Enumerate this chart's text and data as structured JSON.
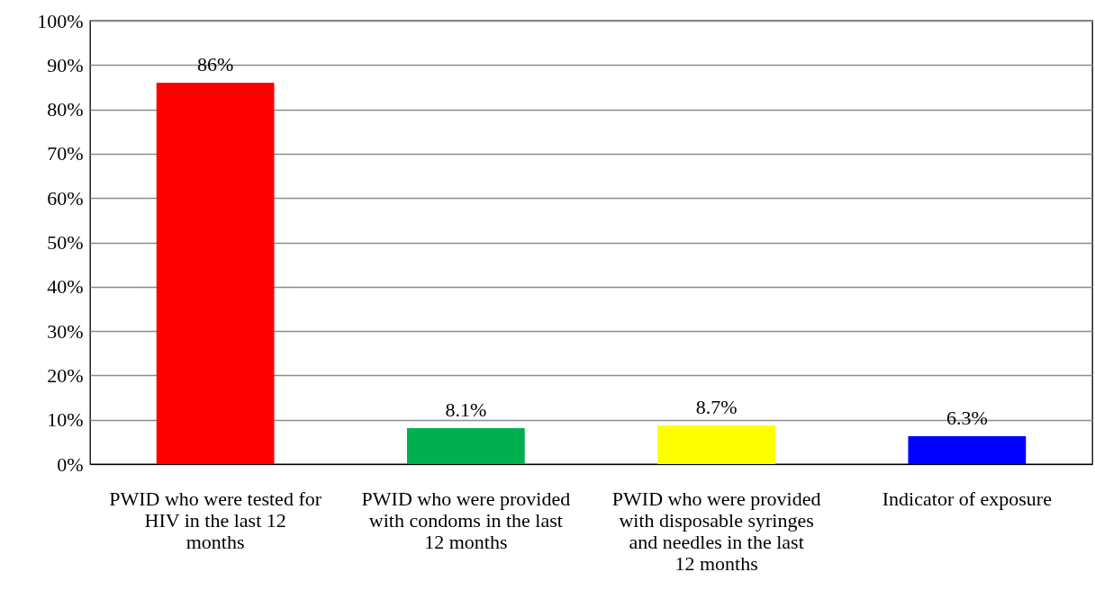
{
  "chart_data": {
    "type": "bar",
    "categories": [
      "PWID who were tested for HIV in the last 12 months",
      "PWID who were provided with condoms in the last 12 months",
      "PWID who were provided with disposable syringes and needles in the last 12 months",
      "Indicator of exposure"
    ],
    "values": [
      86,
      8.1,
      8.7,
      6.3
    ],
    "colors": [
      "#ff0000",
      "#00b050",
      "#ffff00",
      "#0000ff"
    ],
    "value_labels": [
      "86%",
      "8.1%",
      "8.7%",
      "6.3%"
    ],
    "ylim": [
      0,
      100
    ],
    "yticks": [
      {
        "value": 0,
        "label": "0%"
      },
      {
        "value": 10,
        "label": "10%"
      },
      {
        "value": 20,
        "label": "20%"
      },
      {
        "value": 30,
        "label": "30%"
      },
      {
        "value": 40,
        "label": "40%"
      },
      {
        "value": 50,
        "label": "50%"
      },
      {
        "value": 60,
        "label": "60%"
      },
      {
        "value": 70,
        "label": "70%"
      },
      {
        "value": 80,
        "label": "80%"
      },
      {
        "value": 90,
        "label": "90%"
      },
      {
        "value": 100,
        "label": "100%"
      }
    ],
    "grid": "y"
  }
}
